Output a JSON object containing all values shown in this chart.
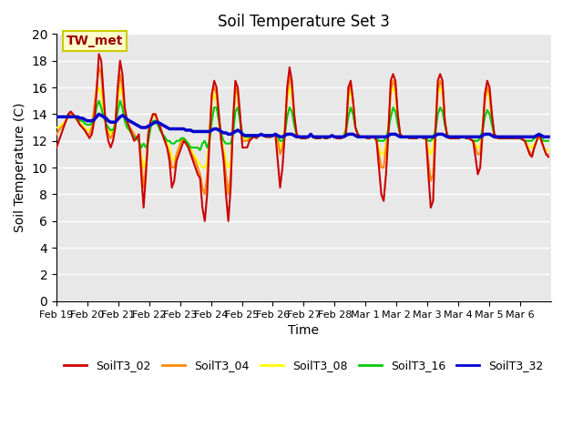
{
  "title": "Soil Temperature Set 3",
  "xlabel": "Time",
  "ylabel": "Soil Temperature (C)",
  "ylim": [
    0,
    20
  ],
  "yticks": [
    0,
    2,
    4,
    6,
    8,
    10,
    12,
    14,
    16,
    18,
    20
  ],
  "bg_color": "#e8e8e8",
  "annotation_text": "TW_met",
  "annotation_box_color": "#ffffcc",
  "annotation_border_color": "#cccc00",
  "annotation_text_color": "#990000",
  "series_colors": {
    "SoilT3_02": "#cc0000",
    "SoilT3_04": "#ff8800",
    "SoilT3_08": "#ffff00",
    "SoilT3_16": "#00cc00",
    "SoilT3_32": "#0000cc"
  },
  "x_tick_labels": [
    "Feb 19",
    "Feb 20",
    "Feb 21",
    "Feb 22",
    "Feb 23",
    "Feb 24",
    "Feb 25",
    "Feb 26",
    "Feb 27",
    "Feb 28",
    "Mar 1",
    "Mar 2",
    "Mar 3",
    "Mar 4",
    "Mar 5",
    "Mar 6"
  ],
  "n_days": 16,
  "SoilT3_02": [
    11.5,
    12.0,
    12.5,
    13.0,
    13.5,
    14.0,
    14.2,
    14.0,
    13.8,
    13.5,
    13.2,
    13.0,
    12.8,
    12.5,
    12.2,
    12.5,
    13.5,
    15.5,
    18.5,
    18.0,
    15.5,
    13.0,
    12.0,
    11.5,
    12.0,
    13.0,
    16.0,
    18.0,
    17.0,
    14.5,
    13.5,
    13.0,
    12.5,
    12.0,
    12.2,
    12.5,
    9.5,
    7.0,
    9.5,
    12.5,
    13.5,
    14.0,
    14.0,
    13.5,
    13.0,
    12.5,
    12.0,
    11.5,
    10.5,
    8.5,
    9.0,
    10.5,
    11.0,
    11.5,
    12.0,
    11.8,
    11.5,
    11.0,
    10.5,
    10.0,
    9.5,
    9.2,
    7.0,
    6.0,
    8.0,
    12.0,
    15.5,
    16.5,
    16.0,
    14.0,
    12.0,
    10.5,
    8.0,
    6.0,
    8.5,
    13.5,
    16.5,
    16.0,
    14.0,
    11.5,
    11.5,
    11.5,
    12.0,
    12.2,
    12.3,
    12.2,
    12.4,
    12.5,
    12.4,
    12.3,
    12.3,
    12.3,
    12.4,
    12.5,
    10.5,
    8.5,
    10.0,
    12.5,
    16.0,
    17.5,
    16.5,
    14.0,
    12.5,
    12.3,
    12.2,
    12.2,
    12.2,
    12.3,
    12.5,
    12.3,
    12.2,
    12.2,
    12.2,
    12.3,
    12.2,
    12.2,
    12.3,
    12.4,
    12.3,
    12.2,
    12.2,
    12.2,
    12.3,
    12.5,
    16.0,
    16.5,
    15.0,
    13.0,
    12.5,
    12.3,
    12.3,
    12.3,
    12.2,
    12.2,
    12.3,
    12.3,
    12.0,
    10.0,
    8.0,
    7.5,
    9.5,
    12.5,
    16.5,
    17.0,
    16.5,
    14.0,
    12.5,
    12.3,
    12.3,
    12.3,
    12.2,
    12.2,
    12.2,
    12.2,
    12.3,
    12.3,
    12.2,
    12.2,
    9.5,
    7.0,
    7.5,
    12.5,
    16.5,
    17.0,
    16.5,
    13.5,
    12.3,
    12.2,
    12.2,
    12.2,
    12.2,
    12.2,
    12.3,
    12.3,
    12.2,
    12.2,
    12.1,
    12.0,
    10.8,
    9.5,
    10.0,
    12.5,
    15.5,
    16.5,
    16.0,
    14.0,
    12.5,
    12.3,
    12.2,
    12.2,
    12.2,
    12.2,
    12.2,
    12.2,
    12.2,
    12.2,
    12.2,
    12.2,
    12.1,
    12.0,
    11.5,
    11.0,
    10.8,
    11.5,
    12.0,
    12.5,
    12.0,
    11.5,
    11.0,
    10.8
  ],
  "SoilT3_04": [
    12.5,
    12.8,
    13.0,
    13.2,
    13.5,
    13.8,
    14.0,
    14.0,
    13.8,
    13.5,
    13.2,
    13.0,
    12.8,
    12.5,
    12.5,
    13.0,
    14.5,
    16.0,
    17.5,
    17.0,
    14.8,
    13.2,
    12.5,
    12.2,
    12.5,
    13.5,
    15.5,
    17.0,
    16.0,
    14.0,
    13.2,
    13.0,
    12.8,
    12.5,
    12.2,
    12.0,
    10.5,
    8.5,
    10.0,
    12.5,
    13.5,
    14.0,
    14.0,
    13.5,
    13.2,
    12.5,
    12.0,
    11.5,
    11.0,
    10.0,
    10.0,
    11.0,
    11.5,
    12.0,
    12.2,
    12.0,
    11.8,
    11.2,
    10.8,
    10.5,
    10.0,
    9.5,
    8.5,
    8.0,
    9.5,
    12.5,
    15.5,
    16.0,
    15.5,
    13.5,
    12.0,
    11.0,
    9.5,
    8.0,
    9.5,
    13.0,
    16.0,
    15.5,
    13.5,
    12.0,
    12.0,
    12.0,
    12.2,
    12.3,
    12.3,
    12.3,
    12.4,
    12.5,
    12.4,
    12.3,
    12.3,
    12.3,
    12.4,
    12.5,
    12.0,
    11.0,
    11.5,
    13.0,
    15.5,
    16.8,
    16.0,
    13.8,
    12.5,
    12.3,
    12.2,
    12.2,
    12.2,
    12.3,
    12.5,
    12.3,
    12.2,
    12.2,
    12.2,
    12.3,
    12.2,
    12.2,
    12.3,
    12.4,
    12.3,
    12.2,
    12.2,
    12.2,
    12.3,
    13.0,
    15.5,
    16.2,
    15.0,
    13.0,
    12.5,
    12.3,
    12.3,
    12.3,
    12.2,
    12.2,
    12.3,
    12.3,
    12.0,
    11.0,
    10.0,
    10.0,
    11.5,
    13.0,
    15.8,
    16.5,
    16.0,
    13.8,
    12.5,
    12.3,
    12.3,
    12.3,
    12.2,
    12.2,
    12.2,
    12.2,
    12.3,
    12.3,
    12.2,
    12.2,
    10.5,
    9.0,
    9.5,
    13.0,
    15.8,
    16.5,
    16.0,
    13.5,
    12.3,
    12.2,
    12.2,
    12.2,
    12.2,
    12.2,
    12.3,
    12.3,
    12.2,
    12.2,
    12.1,
    12.0,
    11.5,
    11.0,
    11.0,
    13.0,
    15.0,
    16.0,
    15.5,
    13.5,
    12.3,
    12.2,
    12.2,
    12.2,
    12.2,
    12.2,
    12.2,
    12.2,
    12.2,
    12.2,
    12.2,
    12.2,
    12.1,
    12.0,
    11.5,
    11.2,
    11.0,
    11.5,
    12.0,
    12.5,
    12.0,
    11.5,
    11.0,
    11.0
  ],
  "SoilT3_08": [
    13.0,
    13.0,
    13.2,
    13.3,
    13.5,
    13.7,
    13.8,
    13.8,
    13.7,
    13.5,
    13.3,
    13.2,
    13.0,
    12.8,
    12.8,
    13.0,
    14.0,
    15.5,
    16.0,
    15.5,
    14.0,
    13.2,
    12.8,
    12.5,
    12.8,
    13.5,
    15.0,
    16.0,
    15.5,
    13.8,
    13.0,
    12.8,
    12.5,
    12.3,
    12.2,
    12.0,
    11.0,
    10.0,
    10.5,
    12.5,
    13.5,
    14.0,
    13.8,
    13.5,
    13.0,
    12.5,
    12.2,
    11.8,
    11.5,
    10.8,
    10.5,
    11.0,
    11.5,
    12.0,
    12.2,
    12.0,
    11.8,
    11.5,
    11.0,
    10.8,
    10.5,
    10.2,
    10.0,
    10.0,
    10.5,
    12.5,
    15.0,
    15.5,
    15.0,
    13.2,
    12.0,
    11.5,
    10.5,
    10.0,
    10.5,
    13.0,
    15.5,
    15.5,
    13.5,
    12.2,
    12.2,
    12.2,
    12.3,
    12.3,
    12.3,
    12.3,
    12.4,
    12.5,
    12.4,
    12.3,
    12.3,
    12.3,
    12.4,
    12.5,
    12.2,
    11.5,
    11.8,
    13.0,
    15.0,
    16.0,
    15.5,
    13.5,
    12.3,
    12.2,
    12.2,
    12.2,
    12.2,
    12.3,
    12.5,
    12.3,
    12.2,
    12.2,
    12.2,
    12.3,
    12.2,
    12.2,
    12.3,
    12.4,
    12.3,
    12.2,
    12.2,
    12.2,
    12.3,
    13.0,
    15.0,
    15.8,
    14.8,
    13.0,
    12.5,
    12.3,
    12.3,
    12.3,
    12.2,
    12.2,
    12.3,
    12.3,
    12.0,
    11.5,
    11.0,
    11.0,
    11.8,
    13.0,
    15.5,
    16.0,
    15.5,
    13.5,
    12.5,
    12.3,
    12.3,
    12.3,
    12.2,
    12.2,
    12.2,
    12.2,
    12.3,
    12.3,
    12.2,
    12.2,
    11.5,
    11.0,
    11.5,
    13.0,
    15.5,
    16.0,
    15.5,
    13.5,
    12.3,
    12.2,
    12.2,
    12.2,
    12.2,
    12.2,
    12.3,
    12.3,
    12.2,
    12.2,
    12.1,
    12.0,
    11.8,
    11.5,
    11.5,
    13.0,
    15.0,
    15.8,
    15.2,
    13.3,
    12.3,
    12.2,
    12.2,
    12.2,
    12.2,
    12.2,
    12.2,
    12.2,
    12.2,
    12.2,
    12.2,
    12.2,
    12.1,
    12.0,
    11.8,
    11.5,
    11.5,
    11.8,
    12.0,
    12.3,
    12.0,
    11.5,
    11.3,
    11.3
  ],
  "SoilT3_16": [
    13.8,
    13.8,
    13.8,
    13.8,
    13.8,
    13.8,
    13.8,
    13.8,
    13.8,
    13.7,
    13.5,
    13.5,
    13.3,
    13.2,
    13.2,
    13.3,
    13.5,
    14.5,
    15.0,
    14.5,
    13.8,
    13.3,
    13.0,
    12.8,
    12.8,
    13.2,
    14.2,
    15.0,
    14.5,
    13.5,
    13.0,
    12.8,
    12.5,
    12.3,
    12.2,
    12.0,
    11.5,
    11.8,
    11.5,
    12.0,
    13.0,
    13.5,
    13.5,
    13.2,
    12.8,
    12.5,
    12.3,
    12.0,
    12.0,
    11.8,
    11.8,
    12.0,
    12.0,
    12.2,
    12.2,
    12.0,
    11.8,
    11.5,
    11.5,
    11.5,
    11.5,
    11.3,
    11.8,
    12.0,
    11.5,
    12.0,
    13.5,
    14.5,
    14.5,
    13.5,
    12.5,
    12.0,
    11.8,
    11.8,
    11.8,
    12.5,
    14.2,
    14.5,
    13.5,
    12.5,
    12.3,
    12.3,
    12.3,
    12.3,
    12.3,
    12.3,
    12.4,
    12.5,
    12.4,
    12.3,
    12.3,
    12.3,
    12.4,
    12.5,
    12.3,
    12.0,
    12.0,
    12.5,
    13.8,
    14.5,
    14.2,
    13.2,
    12.5,
    12.3,
    12.2,
    12.2,
    12.2,
    12.3,
    12.5,
    12.3,
    12.2,
    12.2,
    12.2,
    12.3,
    12.2,
    12.2,
    12.3,
    12.4,
    12.3,
    12.2,
    12.2,
    12.2,
    12.3,
    12.8,
    13.8,
    14.5,
    14.0,
    13.0,
    12.5,
    12.3,
    12.3,
    12.3,
    12.2,
    12.2,
    12.3,
    12.3,
    12.2,
    12.0,
    12.0,
    12.0,
    12.2,
    12.8,
    13.8,
    14.5,
    14.2,
    13.2,
    12.5,
    12.3,
    12.3,
    12.3,
    12.2,
    12.2,
    12.2,
    12.2,
    12.3,
    12.3,
    12.2,
    12.2,
    12.0,
    12.0,
    12.2,
    12.8,
    14.0,
    14.5,
    14.2,
    13.2,
    12.5,
    12.3,
    12.2,
    12.2,
    12.2,
    12.2,
    12.3,
    12.3,
    12.2,
    12.2,
    12.1,
    12.0,
    12.0,
    12.0,
    12.2,
    12.8,
    13.8,
    14.3,
    14.0,
    13.2,
    12.5,
    12.3,
    12.2,
    12.2,
    12.2,
    12.2,
    12.2,
    12.2,
    12.2,
    12.2,
    12.2,
    12.2,
    12.1,
    12.0,
    12.0,
    12.0,
    12.0,
    12.2,
    12.3,
    12.5,
    12.2,
    12.0,
    12.0,
    12.0
  ],
  "SoilT3_32": [
    13.8,
    13.8,
    13.8,
    13.8,
    13.8,
    13.8,
    13.8,
    13.8,
    13.8,
    13.8,
    13.7,
    13.7,
    13.6,
    13.5,
    13.5,
    13.5,
    13.6,
    13.8,
    14.0,
    13.9,
    13.8,
    13.7,
    13.5,
    13.4,
    13.4,
    13.4,
    13.6,
    13.8,
    13.9,
    13.8,
    13.6,
    13.5,
    13.4,
    13.3,
    13.2,
    13.1,
    13.0,
    13.0,
    13.0,
    13.1,
    13.2,
    13.3,
    13.4,
    13.4,
    13.3,
    13.2,
    13.1,
    13.0,
    12.9,
    12.9,
    12.9,
    12.9,
    12.9,
    12.9,
    12.9,
    12.8,
    12.8,
    12.8,
    12.7,
    12.7,
    12.7,
    12.7,
    12.7,
    12.7,
    12.7,
    12.7,
    12.8,
    12.9,
    12.9,
    12.8,
    12.7,
    12.6,
    12.6,
    12.5,
    12.5,
    12.6,
    12.7,
    12.8,
    12.7,
    12.5,
    12.4,
    12.4,
    12.4,
    12.4,
    12.4,
    12.4,
    12.4,
    12.5,
    12.4,
    12.4,
    12.4,
    12.4,
    12.4,
    12.5,
    12.4,
    12.3,
    12.3,
    12.4,
    12.5,
    12.5,
    12.5,
    12.4,
    12.3,
    12.3,
    12.3,
    12.3,
    12.3,
    12.3,
    12.5,
    12.3,
    12.3,
    12.3,
    12.3,
    12.3,
    12.3,
    12.3,
    12.3,
    12.4,
    12.3,
    12.3,
    12.3,
    12.3,
    12.3,
    12.4,
    12.5,
    12.5,
    12.5,
    12.4,
    12.3,
    12.3,
    12.3,
    12.3,
    12.3,
    12.3,
    12.3,
    12.3,
    12.3,
    12.3,
    12.3,
    12.3,
    12.3,
    12.4,
    12.5,
    12.5,
    12.5,
    12.4,
    12.3,
    12.3,
    12.3,
    12.3,
    12.3,
    12.3,
    12.3,
    12.3,
    12.3,
    12.3,
    12.3,
    12.3,
    12.3,
    12.3,
    12.3,
    12.4,
    12.5,
    12.5,
    12.5,
    12.4,
    12.3,
    12.3,
    12.3,
    12.3,
    12.3,
    12.3,
    12.3,
    12.3,
    12.3,
    12.3,
    12.3,
    12.3,
    12.3,
    12.3,
    12.3,
    12.4,
    12.5,
    12.5,
    12.5,
    12.4,
    12.3,
    12.3,
    12.3,
    12.3,
    12.3,
    12.3,
    12.3,
    12.3,
    12.3,
    12.3,
    12.3,
    12.3,
    12.3,
    12.3,
    12.3,
    12.3,
    12.3,
    12.3,
    12.4,
    12.5,
    12.4,
    12.3,
    12.3,
    12.3
  ]
}
